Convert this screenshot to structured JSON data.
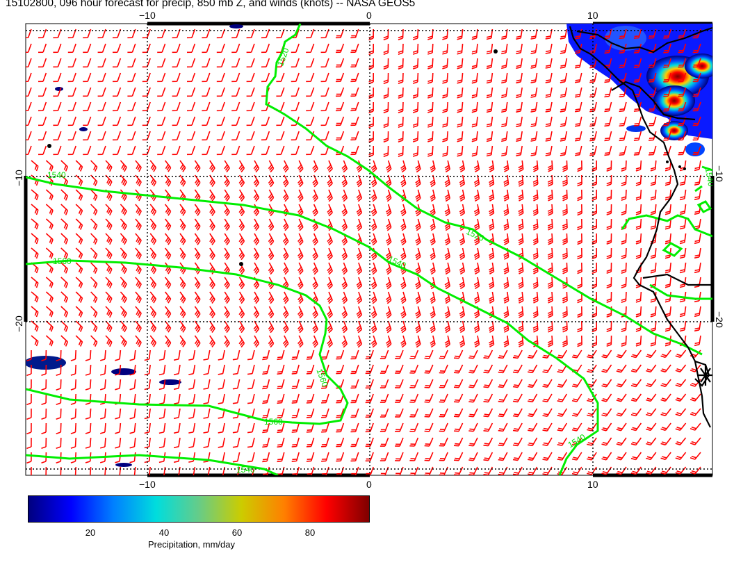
{
  "title": "15102800, 096 hour forecast for precip, 850 mb Z, and winds (knots) -- NASA GEOS5",
  "axes": {
    "x_top_ticks": [
      "−10",
      "0",
      "10"
    ],
    "x_bottom_ticks": [
      "−10",
      "0",
      "10"
    ],
    "y_left_ticks": [
      "−10",
      "−20"
    ],
    "y_right_ticks": [
      "−10",
      "−20"
    ]
  },
  "contour_labels": [
    "1520",
    "1540",
    "1560",
    "1520",
    "1540",
    "1560",
    "1560",
    "1540",
    "1540",
    "1540",
    "1560"
  ],
  "colorbar": {
    "label": "Precipitation, mm/day",
    "ticks": [
      "20",
      "40",
      "60",
      "80"
    ],
    "range": [
      3,
      96
    ],
    "colors": [
      "#00007f",
      "#0000ff",
      "#0080ff",
      "#00dddd",
      "#66cc88",
      "#cccc00",
      "#ff8000",
      "#ff0000",
      "#7f0000"
    ]
  },
  "style": {
    "wind_color": "#ff0000",
    "contour_color": "#00ee00",
    "coast_color": "#000000"
  }
}
